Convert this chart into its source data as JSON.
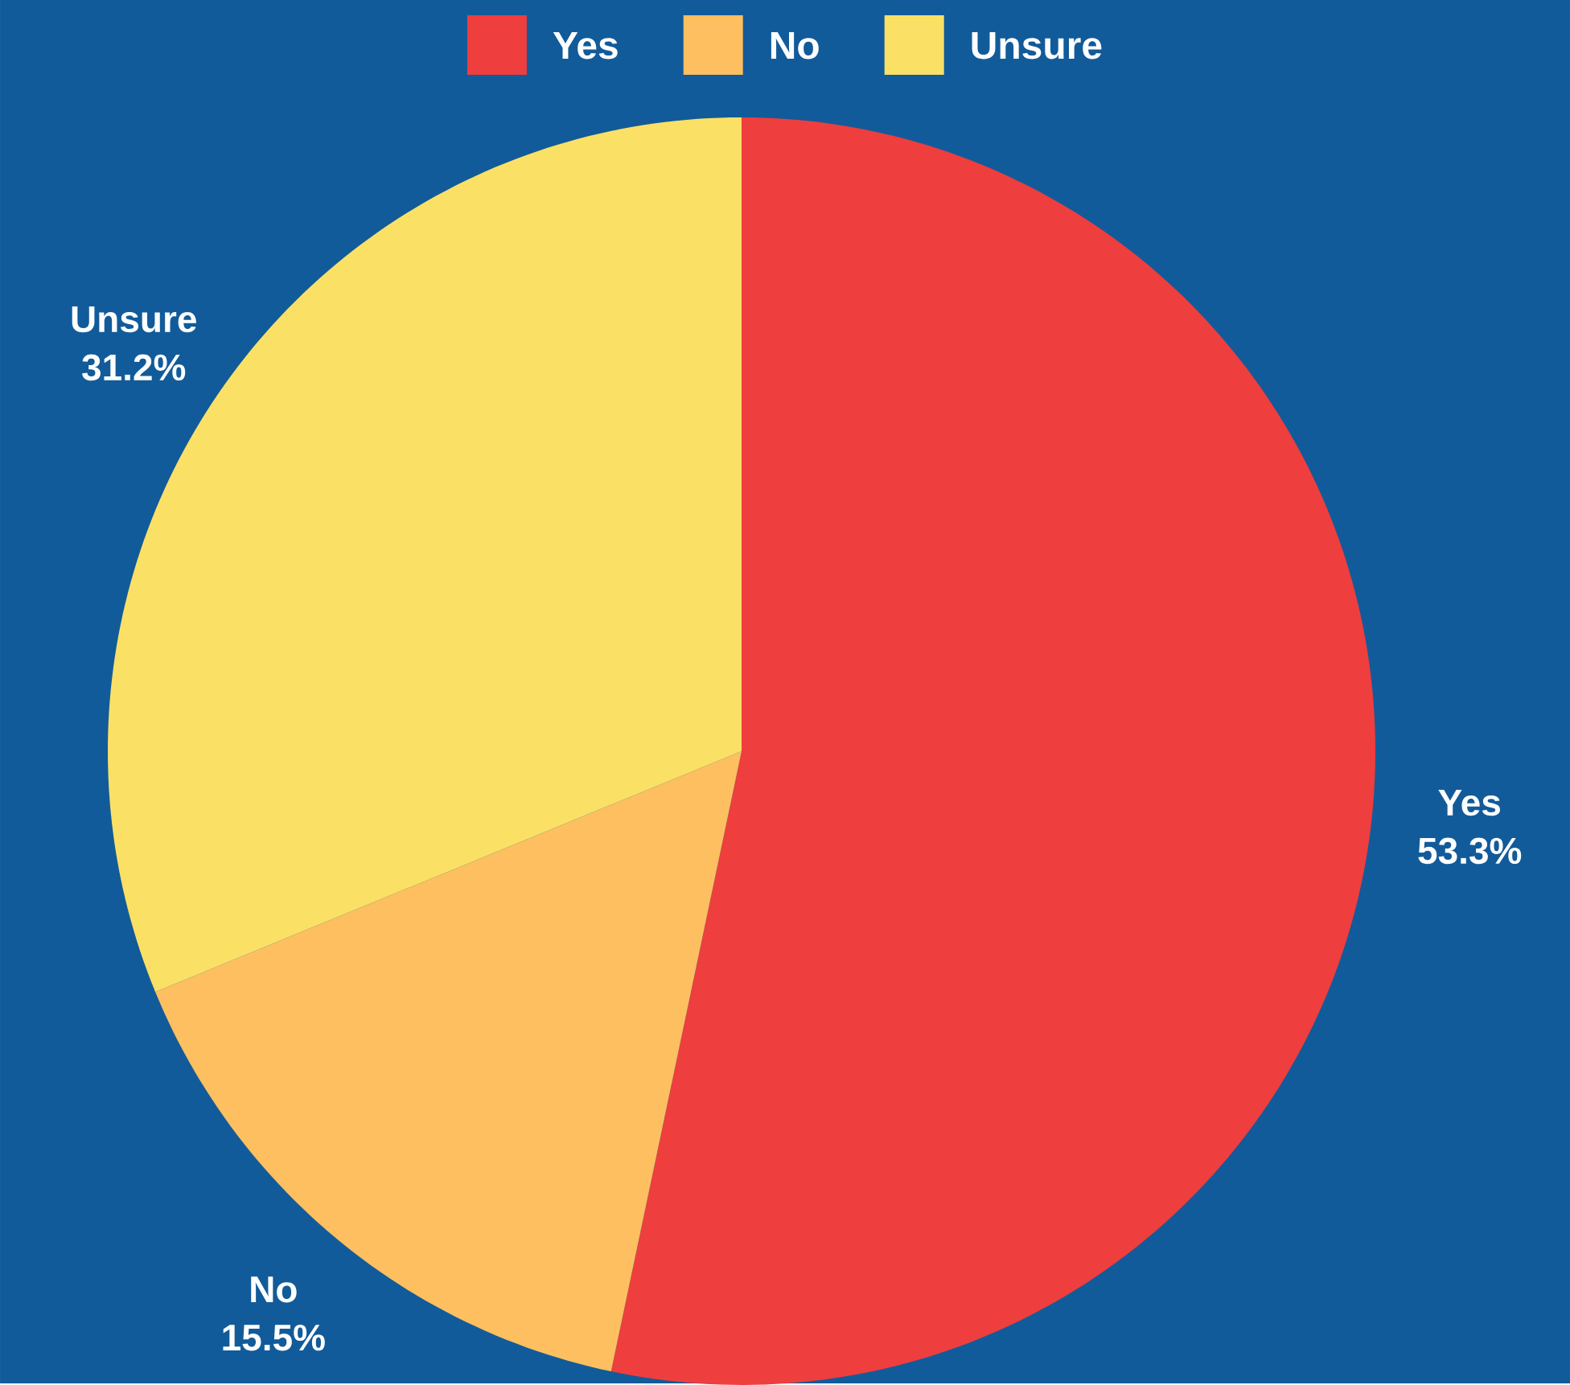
{
  "chart_data": {
    "type": "pie",
    "categories": [
      "Yes",
      "No",
      "Unsure"
    ],
    "values": [
      53.3,
      15.5,
      31.2
    ],
    "colors": [
      "#ee3e3e",
      "#fdbf5f",
      "#fbe066"
    ],
    "value_labels": [
      "53.3%",
      "15.5%",
      "31.2%"
    ],
    "legend": "top"
  }
}
